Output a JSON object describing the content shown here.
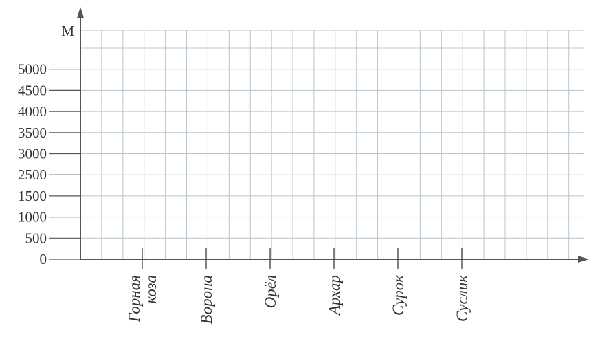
{
  "axis_unit": "М",
  "y_labels": [
    "0",
    "500",
    "1000",
    "1500",
    "2500",
    "3000",
    "3500",
    "4000",
    "4500",
    "5000"
  ],
  "categories": [
    [
      "Горная",
      "коза"
    ],
    [
      "Ворона"
    ],
    [
      "Орёл"
    ],
    [
      "Архар"
    ],
    [
      "Сурок"
    ],
    [
      "Суслик"
    ]
  ]
}
